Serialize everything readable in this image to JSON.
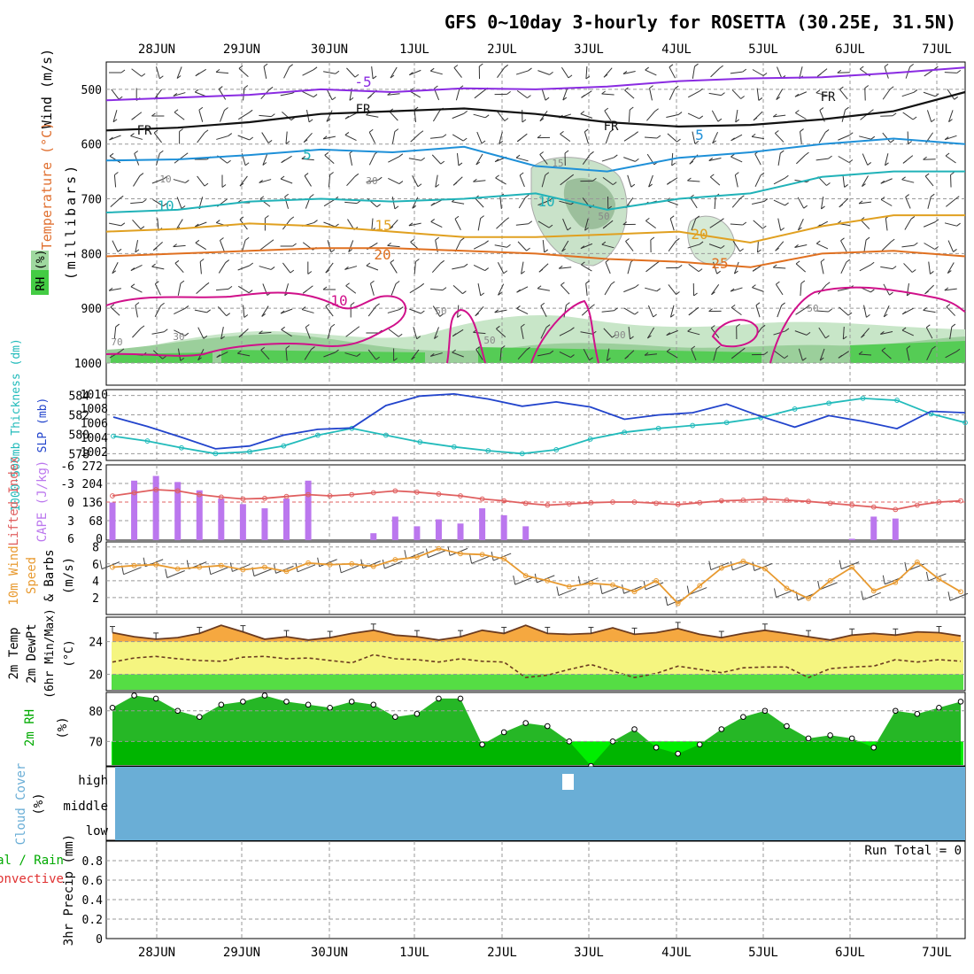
{
  "title": "GFS 0~10day 3-hourly for ROSETTA (30.25E, 31.5N)",
  "dates": [
    "28JUN",
    "29JUN",
    "30JUN",
    "1JUL",
    "2JUL",
    "3JUL",
    "4JUL",
    "5JUL",
    "6JUL",
    "7JUL"
  ],
  "colors": {
    "temp_label": "#e06060",
    "wind_label": "#000000",
    "rh_label": "#33cc33",
    "cyan": "#22bbbb",
    "blue": "#2244cc",
    "lilac": "#bb77ee",
    "orange": "#e89a30",
    "green": "#00cc00",
    "cloud": "#6aaed6"
  },
  "panels": {
    "upper": {
      "ylabel_wind": "Wind (m/s)",
      "ylabel_temp": "Temperature (°C)",
      "ylabel_rh": "RH (%)",
      "ylabel_mb": "(millibars)",
      "yticks": [
        "500",
        "600",
        "700",
        "800",
        "900",
        "1000"
      ],
      "contour_labels": [
        "-5",
        "FR",
        "FR",
        "FR",
        "FR",
        "5",
        "5",
        "10",
        "10",
        "15",
        "15",
        "20",
        "20",
        "25",
        "10",
        "10",
        "30",
        "50",
        "50",
        "50",
        "50",
        "30",
        "70",
        "90"
      ]
    },
    "pressure": {
      "ylabel_thick": "1000-500mb Thickness (dm)",
      "ylabel_slp": "SLP (mb)",
      "left_ticks": [
        "584",
        "582",
        "580",
        "578"
      ],
      "right_ticks": [
        "1010",
        "1008",
        "1006",
        "1004",
        "1002"
      ]
    },
    "cape": {
      "ylabel_li": "Lifted Index",
      "ylabel_cape": "CAPE (J/kg)",
      "li_ticks": [
        "-6",
        "-3",
        "0",
        "3",
        "6"
      ],
      "cape_ticks": [
        "272",
        "204",
        "136",
        "68",
        "0"
      ]
    },
    "wind10": {
      "ylabel_a": "10m Wind",
      "ylabel_b": "Speed",
      "ylabel_c": "& Barbs",
      "ylabel_d": "(m/s)",
      "yticks": [
        "8",
        "6",
        "4",
        "2"
      ]
    },
    "temp2m": {
      "ylabel_a": "2m Temp",
      "ylabel_b": "2m DewPt",
      "ylabel_c": "(6hr Min/Max)",
      "ylabel_d": "(°C)",
      "yticks": [
        "24",
        "20"
      ]
    },
    "rh2m": {
      "ylabel_a": "2m RH",
      "ylabel_b": "(%)",
      "yticks": [
        "80",
        "70"
      ]
    },
    "cloud": {
      "ylabel_a": "Cloud Cover",
      "ylabel_b": "(%)",
      "levels": [
        "high",
        "middle",
        "low"
      ]
    },
    "precip": {
      "ylabel_a": "3hr Precip (mm)",
      "ylabel_b": "Total / Rain",
      "ylabel_c": "Convective",
      "yticks": [
        "0.8",
        "0.6",
        "0.4",
        "0.2",
        "0"
      ],
      "run_total": "Run Total = 0"
    }
  },
  "chart_data": [
    {
      "type": "line",
      "name_hint": "upper-air cross-section",
      "x": "3-hourly, 27 JUN 12Z to 7 JUL 06Z",
      "ylim": [
        1000,
        450
      ],
      "isotherms": [
        {
          "label": "-5",
          "p": [
            520,
            515,
            510,
            500,
            505,
            498,
            500,
            495,
            485,
            480,
            478,
            470,
            460
          ]
        },
        {
          "label": "FR",
          "p": [
            575,
            570,
            560,
            545,
            540,
            535,
            545,
            560,
            568,
            565,
            555,
            540,
            505
          ]
        },
        {
          "label": "5",
          "p": [
            630,
            628,
            620,
            610,
            615,
            605,
            640,
            650,
            625,
            615,
            600,
            590,
            600
          ]
        },
        {
          "label": "10",
          "p": [
            725,
            720,
            705,
            700,
            705,
            700,
            690,
            720,
            700,
            690,
            660,
            650,
            650
          ]
        },
        {
          "label": "15",
          "p": [
            760,
            755,
            745,
            750,
            760,
            770,
            770,
            765,
            760,
            780,
            750,
            730,
            730
          ]
        },
        {
          "label": "20",
          "p": [
            805,
            800,
            795,
            790,
            790,
            795,
            800,
            810,
            815,
            825,
            800,
            795,
            805
          ]
        }
      ]
    },
    {
      "type": "line",
      "name": "",
      "series": [
        {
          "name": "",
          "values": [
            579.8,
            579.3,
            578.6,
            578.0,
            578.2,
            578.8,
            579.9,
            580.6,
            579.9,
            579.2,
            578.7,
            578.3,
            578.0,
            578.4,
            579.5,
            580.2,
            580.6,
            580.9,
            581.2,
            581.7,
            582.6,
            583.2,
            583.7,
            583.5,
            582.1,
            581.2
          ]
        },
        {
          "name": "",
          "values": [
            1006.8,
            1005.5,
            1004.0,
            1002.4,
            1002.8,
            1004.3,
            1005.1,
            1005.3,
            1008.4,
            1009.7,
            1010.0,
            1009.3,
            1008.3,
            1008.9,
            1008.2,
            1006.5,
            1007.1,
            1007.4,
            1008.6,
            1006.9,
            1005.4,
            1007.0,
            1006.2,
            1005.2,
            1007.6,
            1007.4
          ]
        }
      ],
      "y_units_left": "dm",
      "y_units_right": "mb"
    },
    {
      "type": "bar",
      "x_hours": [
        0,
        3,
        6,
        9,
        12,
        15,
        18,
        21,
        24,
        27,
        30,
        33,
        36,
        39,
        42,
        45,
        48,
        51,
        54,
        57,
        60,
        63,
        66,
        69,
        72,
        75,
        78,
        81,
        84,
        87,
        90,
        93,
        96,
        99,
        102,
        105,
        108,
        111,
        114,
        117
      ],
      "cape_values": [
        136,
        215,
        232,
        210,
        180,
        150,
        130,
        115,
        150,
        215,
        0,
        0,
        25,
        85,
        50,
        75,
        60,
        115,
        90,
        50,
        0,
        0,
        0,
        0,
        0,
        0,
        0,
        0,
        0,
        0,
        0,
        0,
        0,
        0,
        5,
        85,
        78,
        0,
        0,
        0
      ],
      "li_values": [
        -1,
        -1.5,
        -2,
        -1.8,
        -1.2,
        -0.8,
        -0.5,
        -0.6,
        -0.9,
        -1.2,
        -1,
        -1.2,
        -1.5,
        -1.8,
        -1.6,
        -1.3,
        -1,
        -0.5,
        -0.2,
        0.2,
        0.5,
        0.3,
        0.1,
        0,
        0,
        0.2,
        0.4,
        0.1,
        -0.2,
        -0.3,
        -0.5,
        -0.3,
        -0.1,
        0.2,
        0.5,
        0.8,
        1.2,
        0.5,
        0,
        -0.2
      ],
      "ylim_cape": [
        0,
        272
      ],
      "ylim_li": [
        6,
        -6
      ]
    },
    {
      "type": "line",
      "name": "",
      "values": [
        5.6,
        5.8,
        5.9,
        5.4,
        5.6,
        5.8,
        5.3,
        5.6,
        5.1,
        6.1,
        5.9,
        6.0,
        5.7,
        6.5,
        6.8,
        7.8,
        7.2,
        7.1,
        6.6,
        4.6,
        4.0,
        3.3,
        3.7,
        3.5,
        2.7,
        4.0,
        1.3,
        3.4,
        5.5,
        6.3,
        5.4,
        3.1,
        1.9,
        4.0,
        5.6,
        2.8,
        3.8,
        6.2,
        4.2,
        2.7
      ],
      "ylim": [
        0,
        8
      ]
    },
    {
      "type": "area",
      "name": "2m temperature",
      "max_values": [
        25.1,
        24.6,
        24.3,
        24.5,
        25.0,
        26.0,
        25.2,
        24.3,
        24.6,
        24.2,
        24.5,
        25.0,
        25.4,
        24.8,
        24.6,
        24.2,
        24.6,
        25.4,
        25.0,
        26.0,
        25.0,
        24.9,
        25.0,
        25.7,
        24.9,
        25.1,
        25.6,
        24.9,
        24.5,
        25.0,
        25.4,
        25.0,
        24.6,
        24.2,
        24.8,
        25.0,
        24.8,
        25.2,
        25.1,
        24.7
      ],
      "dewpt_values": [
        21.5,
        22.0,
        22.2,
        21.9,
        21.7,
        21.6,
        22.1,
        22.2,
        21.9,
        22.0,
        21.7,
        21.4,
        22.4,
        21.9,
        21.8,
        21.5,
        21.9,
        21.6,
        21.5,
        19.6,
        19.9,
        20.6,
        21.2,
        20.4,
        19.6,
        20.1,
        21.0,
        20.6,
        20.2,
        20.8,
        20.9,
        20.9,
        19.6,
        20.7,
        20.9,
        21.0,
        21.8,
        21.5,
        21.8,
        21.6
      ],
      "ylim": [
        18,
        27
      ]
    },
    {
      "type": "area",
      "name": "2m RH",
      "values": [
        81,
        85,
        84,
        80,
        78,
        82,
        83,
        85,
        83,
        82,
        81,
        83,
        82,
        78,
        79,
        84,
        84,
        69,
        73,
        76,
        75,
        70,
        62,
        70,
        74,
        68,
        66,
        69,
        74,
        78,
        80,
        75,
        71,
        72,
        71,
        68,
        80,
        79,
        81,
        83
      ],
      "ylim": [
        62,
        86
      ]
    },
    {
      "type": "heatmap",
      "name": "cloud cover",
      "levels": [
        "high",
        "middle",
        "low"
      ],
      "high_gap_between_hours": [
        81,
        84
      ]
    },
    {
      "type": "bar",
      "name": "3hr precip",
      "ylim": [
        0,
        1
      ],
      "values": []
    }
  ]
}
